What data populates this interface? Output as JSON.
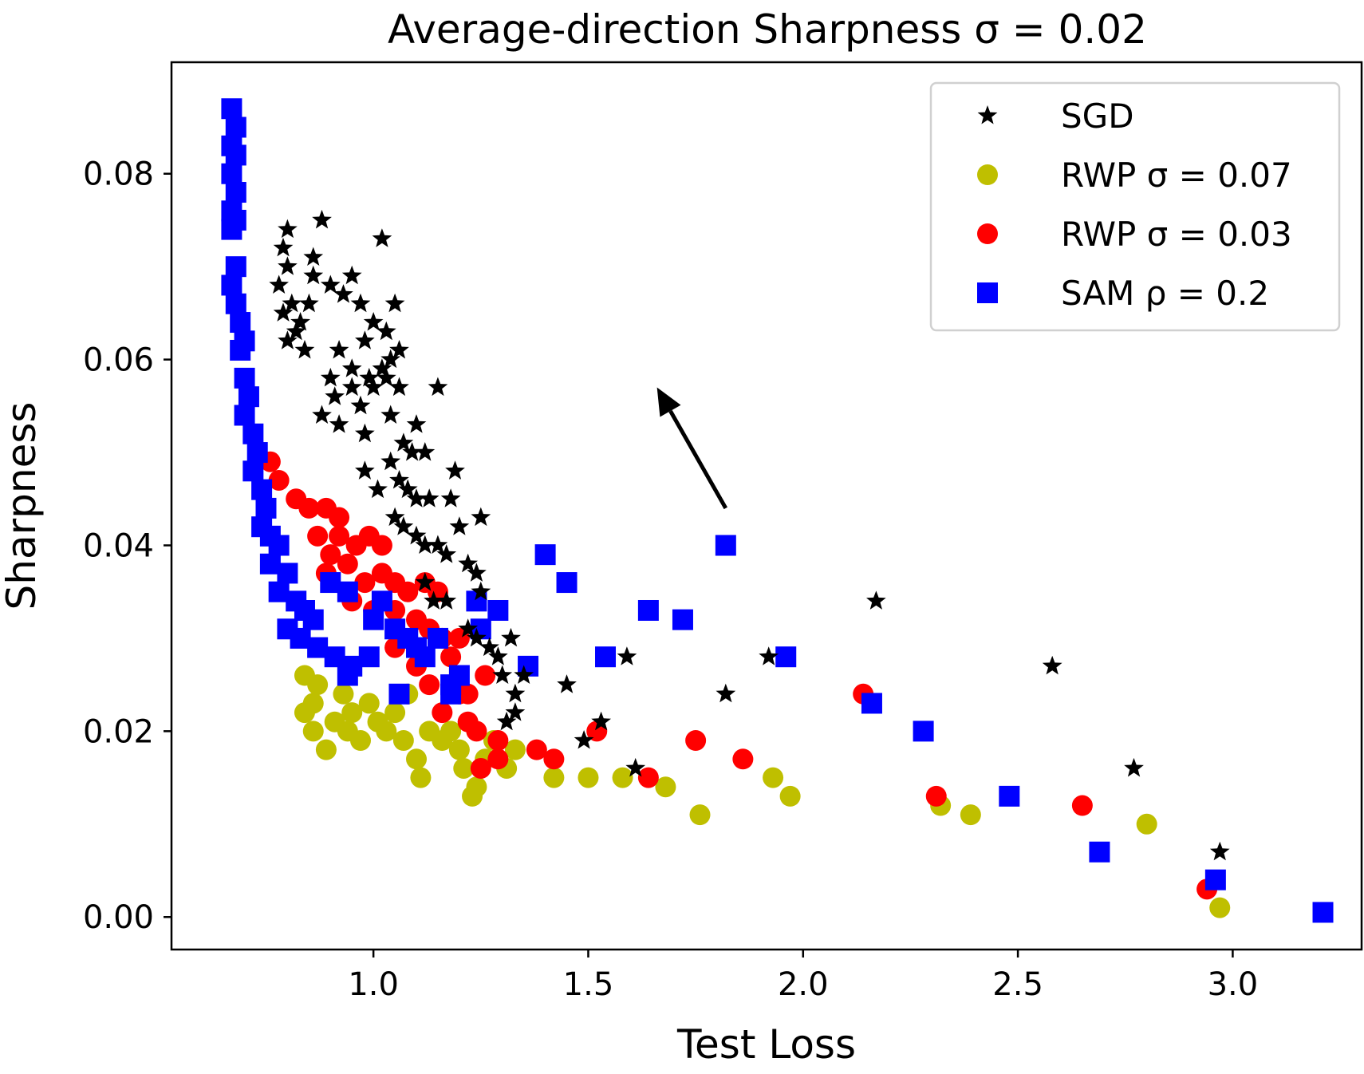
{
  "chart_data": {
    "type": "scatter",
    "title": "Average-direction Sharpness σ = 0.02",
    "xlabel": "Test Loss",
    "ylabel": "Sharpness",
    "xlim": [
      0.53,
      3.3
    ],
    "ylim": [
      -0.0035,
      0.092
    ],
    "xticks": [
      1.0,
      1.5,
      2.0,
      2.5,
      3.0
    ],
    "xtick_labels": [
      "1.0",
      "1.5",
      "2.0",
      "2.5",
      "3.0"
    ],
    "yticks": [
      0.0,
      0.02,
      0.04,
      0.06,
      0.08
    ],
    "ytick_labels": [
      "0.00",
      "0.02",
      "0.04",
      "0.06",
      "0.08"
    ],
    "grid": false,
    "legend_position": "top-right",
    "annotation": {
      "type": "arrow",
      "from": [
        1.82,
        0.044
      ],
      "to": [
        1.66,
        0.057
      ]
    },
    "series": [
      {
        "name": "SGD",
        "marker": "star",
        "color": "#000000",
        "points": [
          [
            0.8,
            0.074
          ],
          [
            0.79,
            0.072
          ],
          [
            0.8,
            0.07
          ],
          [
            0.78,
            0.068
          ],
          [
            0.81,
            0.066
          ],
          [
            0.79,
            0.065
          ],
          [
            0.82,
            0.063
          ],
          [
            0.8,
            0.062
          ],
          [
            0.84,
            0.061
          ],
          [
            0.83,
            0.064
          ],
          [
            0.85,
            0.066
          ],
          [
            0.86,
            0.069
          ],
          [
            0.88,
            0.075
          ],
          [
            0.86,
            0.071
          ],
          [
            0.9,
            0.068
          ],
          [
            0.93,
            0.067
          ],
          [
            0.95,
            0.069
          ],
          [
            0.97,
            0.066
          ],
          [
            1.02,
            0.073
          ],
          [
            1.05,
            0.066
          ],
          [
            1.03,
            0.063
          ],
          [
            1.0,
            0.064
          ],
          [
            1.06,
            0.061
          ],
          [
            0.92,
            0.061
          ],
          [
            0.95,
            0.059
          ],
          [
            0.98,
            0.062
          ],
          [
            0.99,
            0.058
          ],
          [
            1.02,
            0.059
          ],
          [
            1.04,
            0.06
          ],
          [
            0.9,
            0.058
          ],
          [
            0.91,
            0.056
          ],
          [
            0.95,
            0.057
          ],
          [
            0.97,
            0.055
          ],
          [
            1.0,
            0.057
          ],
          [
            1.03,
            0.058
          ],
          [
            1.06,
            0.057
          ],
          [
            1.1,
            0.053
          ],
          [
            0.88,
            0.054
          ],
          [
            0.92,
            0.053
          ],
          [
            0.98,
            0.052
          ],
          [
            1.04,
            0.054
          ],
          [
            1.07,
            0.051
          ],
          [
            1.09,
            0.05
          ],
          [
            1.12,
            0.05
          ],
          [
            1.15,
            0.057
          ],
          [
            1.19,
            0.048
          ],
          [
            1.18,
            0.045
          ],
          [
            1.25,
            0.043
          ],
          [
            0.98,
            0.048
          ],
          [
            1.01,
            0.046
          ],
          [
            1.04,
            0.049
          ],
          [
            1.06,
            0.047
          ],
          [
            1.08,
            0.046
          ],
          [
            1.1,
            0.045
          ],
          [
            1.13,
            0.045
          ],
          [
            1.05,
            0.043
          ],
          [
            1.07,
            0.042
          ],
          [
            1.1,
            0.041
          ],
          [
            1.12,
            0.04
          ],
          [
            1.15,
            0.04
          ],
          [
            1.17,
            0.039
          ],
          [
            1.2,
            0.042
          ],
          [
            1.22,
            0.038
          ],
          [
            1.24,
            0.037
          ],
          [
            1.25,
            0.035
          ],
          [
            1.12,
            0.036
          ],
          [
            1.14,
            0.034
          ],
          [
            1.17,
            0.034
          ],
          [
            1.22,
            0.031
          ],
          [
            1.24,
            0.03
          ],
          [
            1.27,
            0.029
          ],
          [
            1.29,
            0.028
          ],
          [
            1.32,
            0.03
          ],
          [
            1.3,
            0.026
          ],
          [
            1.33,
            0.024
          ],
          [
            1.35,
            0.026
          ],
          [
            1.33,
            0.022
          ],
          [
            1.31,
            0.021
          ],
          [
            1.45,
            0.025
          ],
          [
            1.53,
            0.021
          ],
          [
            1.59,
            0.028
          ],
          [
            1.61,
            0.016
          ],
          [
            1.49,
            0.019
          ],
          [
            1.82,
            0.024
          ],
          [
            1.92,
            0.028
          ],
          [
            2.17,
            0.034
          ],
          [
            2.58,
            0.027
          ],
          [
            2.77,
            0.016
          ],
          [
            2.97,
            0.007
          ]
        ]
      },
      {
        "name": "RWP σ = 0.07",
        "marker": "circle",
        "color": "#bfbf00",
        "points": [
          [
            0.84,
            0.026
          ],
          [
            0.87,
            0.025
          ],
          [
            0.86,
            0.023
          ],
          [
            0.84,
            0.022
          ],
          [
            0.86,
            0.02
          ],
          [
            0.89,
            0.018
          ],
          [
            0.91,
            0.021
          ],
          [
            0.93,
            0.024
          ],
          [
            0.95,
            0.022
          ],
          [
            0.94,
            0.02
          ],
          [
            0.97,
            0.019
          ],
          [
            0.99,
            0.023
          ],
          [
            1.01,
            0.021
          ],
          [
            1.03,
            0.02
          ],
          [
            1.05,
            0.022
          ],
          [
            1.07,
            0.019
          ],
          [
            1.08,
            0.024
          ],
          [
            1.1,
            0.017
          ],
          [
            1.11,
            0.015
          ],
          [
            1.13,
            0.02
          ],
          [
            1.16,
            0.019
          ],
          [
            1.18,
            0.02
          ],
          [
            1.2,
            0.018
          ],
          [
            1.21,
            0.016
          ],
          [
            1.23,
            0.013
          ],
          [
            1.24,
            0.014
          ],
          [
            1.26,
            0.017
          ],
          [
            1.28,
            0.019
          ],
          [
            1.31,
            0.016
          ],
          [
            1.33,
            0.018
          ],
          [
            1.42,
            0.015
          ],
          [
            1.5,
            0.015
          ],
          [
            1.58,
            0.015
          ],
          [
            1.68,
            0.014
          ],
          [
            1.76,
            0.011
          ],
          [
            1.93,
            0.015
          ],
          [
            1.97,
            0.013
          ],
          [
            2.32,
            0.012
          ],
          [
            2.39,
            0.011
          ],
          [
            2.8,
            0.01
          ],
          [
            2.97,
            0.001
          ]
        ]
      },
      {
        "name": "RWP σ = 0.03",
        "marker": "circle",
        "color": "#ff0000",
        "points": [
          [
            0.76,
            0.049
          ],
          [
            0.78,
            0.047
          ],
          [
            0.82,
            0.045
          ],
          [
            0.85,
            0.044
          ],
          [
            0.89,
            0.044
          ],
          [
            0.92,
            0.043
          ],
          [
            0.87,
            0.041
          ],
          [
            0.9,
            0.039
          ],
          [
            0.92,
            0.041
          ],
          [
            0.96,
            0.04
          ],
          [
            0.99,
            0.041
          ],
          [
            1.02,
            0.04
          ],
          [
            0.89,
            0.037
          ],
          [
            0.94,
            0.038
          ],
          [
            0.98,
            0.036
          ],
          [
            1.02,
            0.037
          ],
          [
            1.05,
            0.036
          ],
          [
            1.08,
            0.035
          ],
          [
            1.12,
            0.036
          ],
          [
            1.15,
            0.035
          ],
          [
            0.95,
            0.034
          ],
          [
            1.0,
            0.033
          ],
          [
            1.05,
            0.033
          ],
          [
            1.1,
            0.032
          ],
          [
            1.13,
            0.031
          ],
          [
            1.16,
            0.03
          ],
          [
            1.2,
            0.03
          ],
          [
            1.05,
            0.029
          ],
          [
            1.1,
            0.027
          ],
          [
            1.13,
            0.025
          ],
          [
            1.18,
            0.028
          ],
          [
            1.2,
            0.024
          ],
          [
            1.22,
            0.024
          ],
          [
            1.16,
            0.022
          ],
          [
            1.22,
            0.021
          ],
          [
            1.24,
            0.02
          ],
          [
            1.26,
            0.026
          ],
          [
            1.29,
            0.019
          ],
          [
            1.29,
            0.017
          ],
          [
            1.25,
            0.016
          ],
          [
            1.38,
            0.018
          ],
          [
            1.42,
            0.017
          ],
          [
            1.52,
            0.02
          ],
          [
            1.64,
            0.015
          ],
          [
            1.75,
            0.019
          ],
          [
            1.86,
            0.017
          ],
          [
            2.14,
            0.024
          ],
          [
            2.31,
            0.013
          ],
          [
            2.65,
            0.012
          ],
          [
            2.94,
            0.003
          ]
        ]
      },
      {
        "name": "SAM ρ = 0.2",
        "marker": "square",
        "color": "#0000ff",
        "points": [
          [
            0.67,
            0.087
          ],
          [
            0.68,
            0.085
          ],
          [
            0.67,
            0.083
          ],
          [
            0.68,
            0.082
          ],
          [
            0.67,
            0.08
          ],
          [
            0.68,
            0.078
          ],
          [
            0.67,
            0.076
          ],
          [
            0.68,
            0.075
          ],
          [
            0.67,
            0.074
          ],
          [
            0.68,
            0.07
          ],
          [
            0.67,
            0.068
          ],
          [
            0.68,
            0.066
          ],
          [
            0.69,
            0.064
          ],
          [
            0.7,
            0.062
          ],
          [
            0.69,
            0.061
          ],
          [
            0.7,
            0.058
          ],
          [
            0.71,
            0.056
          ],
          [
            0.7,
            0.054
          ],
          [
            0.72,
            0.052
          ],
          [
            0.73,
            0.05
          ],
          [
            0.72,
            0.048
          ],
          [
            0.74,
            0.046
          ],
          [
            0.75,
            0.044
          ],
          [
            0.74,
            0.042
          ],
          [
            0.76,
            0.041
          ],
          [
            0.78,
            0.04
          ],
          [
            0.76,
            0.038
          ],
          [
            0.8,
            0.037
          ],
          [
            0.78,
            0.035
          ],
          [
            0.82,
            0.034
          ],
          [
            0.84,
            0.033
          ],
          [
            0.86,
            0.032
          ],
          [
            0.8,
            0.031
          ],
          [
            0.83,
            0.03
          ],
          [
            0.87,
            0.029
          ],
          [
            0.91,
            0.028
          ],
          [
            0.95,
            0.027
          ],
          [
            0.99,
            0.028
          ],
          [
            0.9,
            0.036
          ],
          [
            0.94,
            0.035
          ],
          [
            1.02,
            0.034
          ],
          [
            1.0,
            0.032
          ],
          [
            1.05,
            0.031
          ],
          [
            1.08,
            0.03
          ],
          [
            1.1,
            0.029
          ],
          [
            1.15,
            0.03
          ],
          [
            1.12,
            0.028
          ],
          [
            1.06,
            0.024
          ],
          [
            0.94,
            0.026
          ],
          [
            1.18,
            0.025
          ],
          [
            1.2,
            0.026
          ],
          [
            1.18,
            0.024
          ],
          [
            1.24,
            0.034
          ],
          [
            1.25,
            0.031
          ],
          [
            1.29,
            0.033
          ],
          [
            1.36,
            0.027
          ],
          [
            1.4,
            0.039
          ],
          [
            1.45,
            0.036
          ],
          [
            1.54,
            0.028
          ],
          [
            1.64,
            0.033
          ],
          [
            1.72,
            0.032
          ],
          [
            1.82,
            0.04
          ],
          [
            1.96,
            0.028
          ],
          [
            2.16,
            0.023
          ],
          [
            2.28,
            0.02
          ],
          [
            2.48,
            0.013
          ],
          [
            2.69,
            0.007
          ],
          [
            2.96,
            0.004
          ],
          [
            3.21,
            0.0005
          ]
        ]
      }
    ]
  }
}
